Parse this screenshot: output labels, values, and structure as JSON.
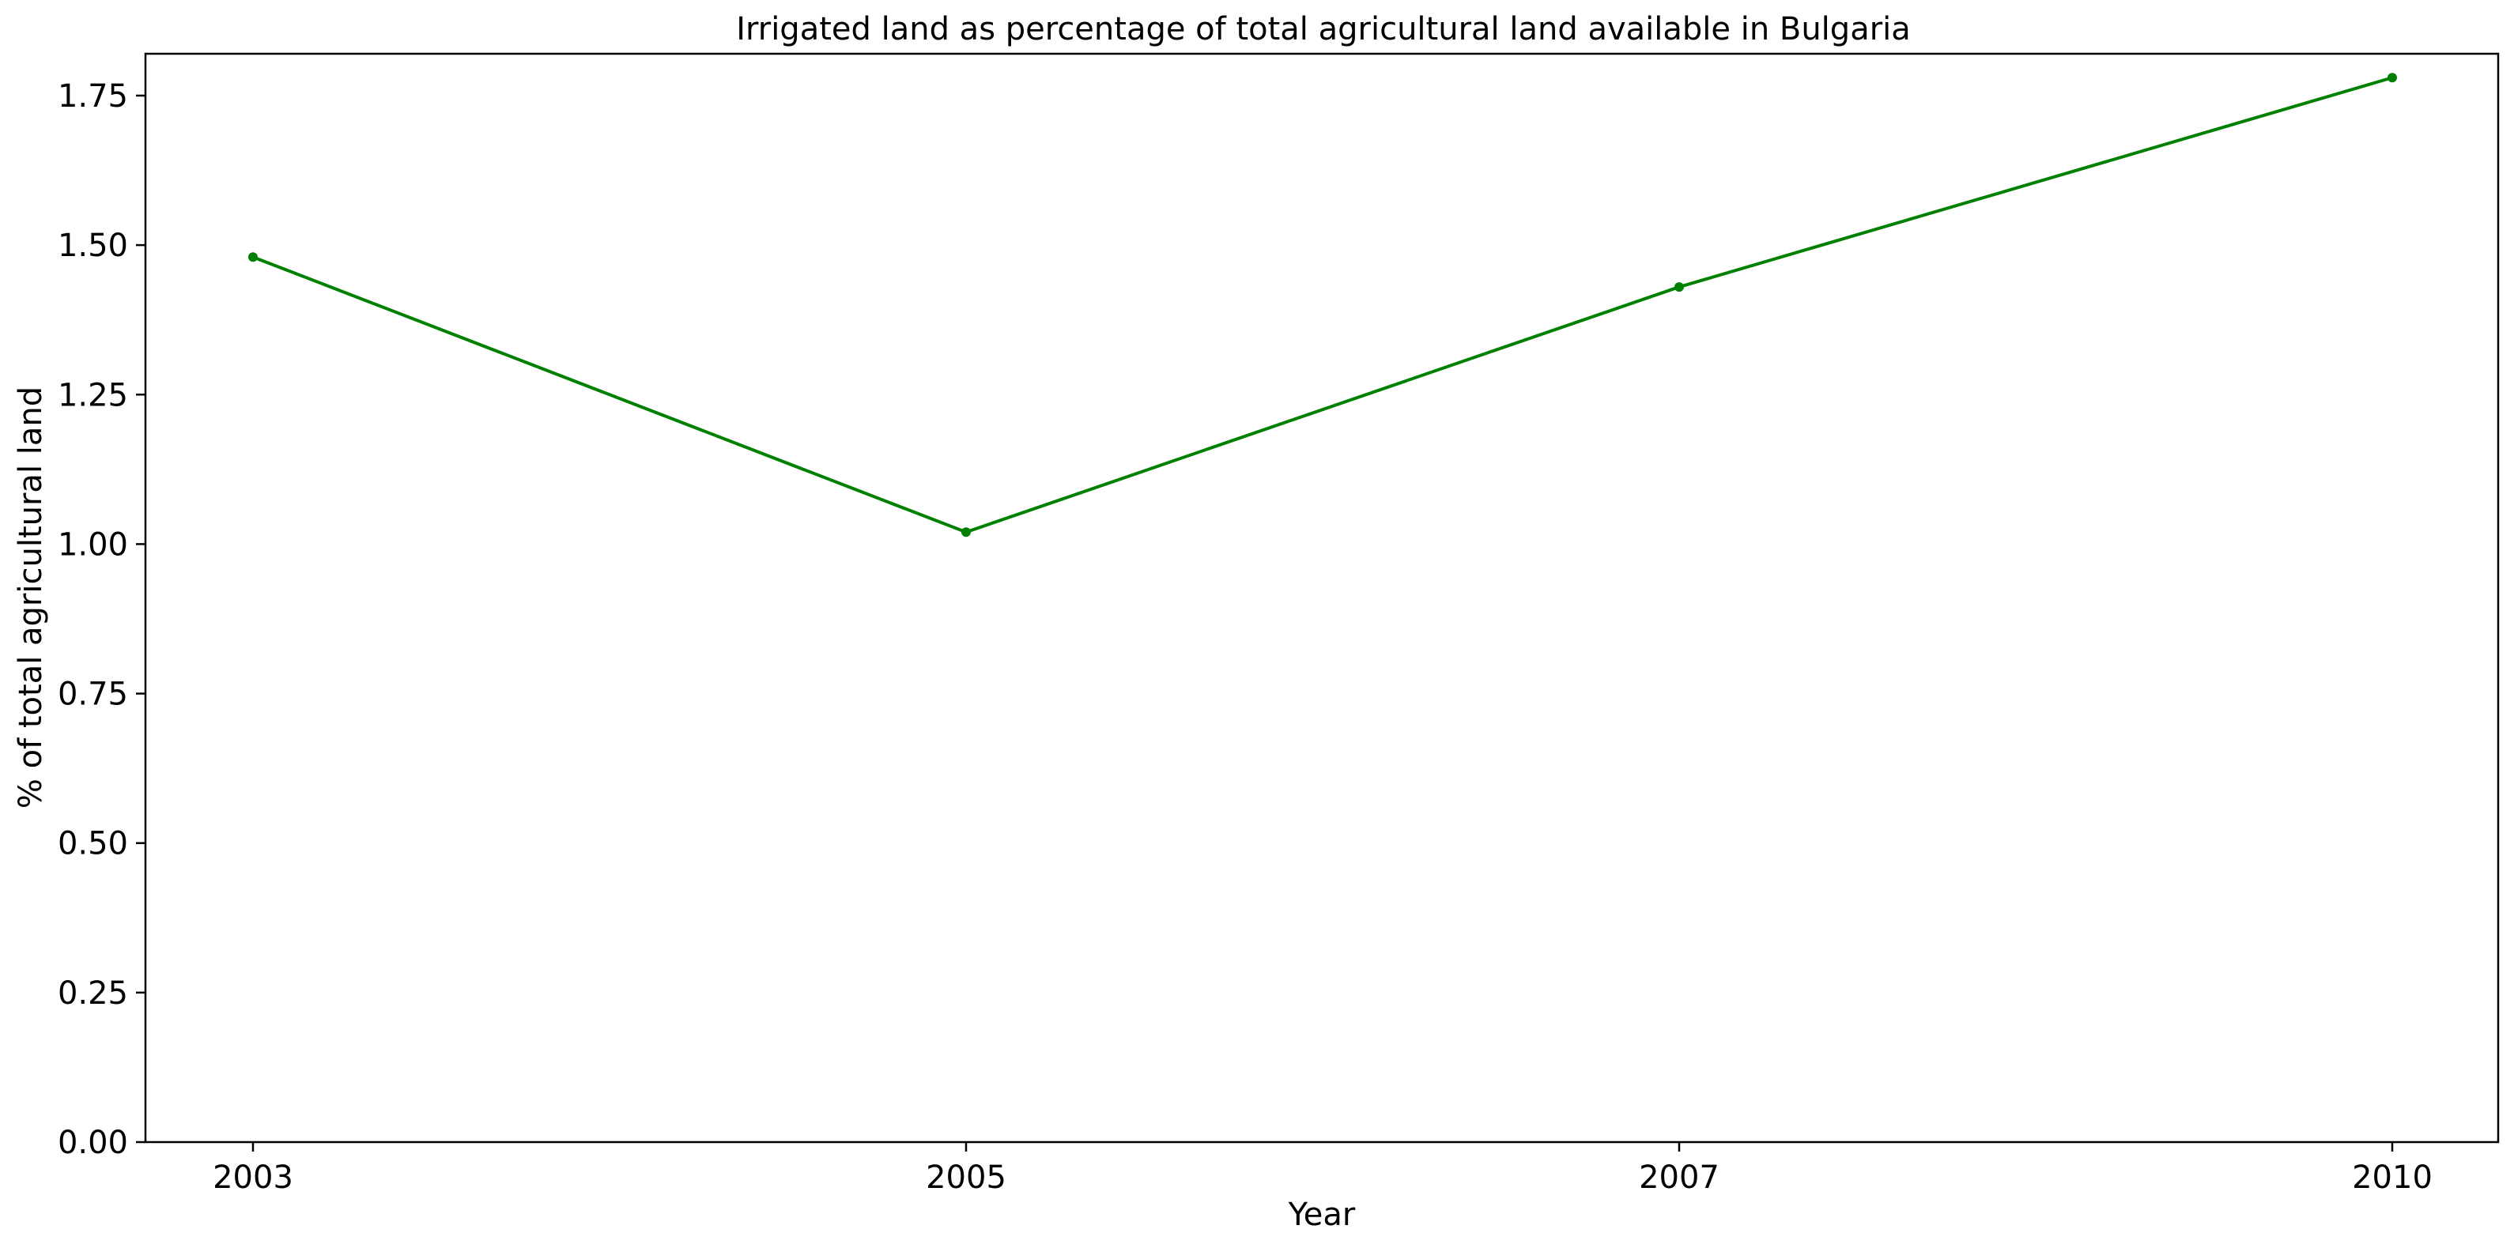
{
  "chart_data": {
    "type": "line",
    "title": "Irrigated land as percentage of total agricultural land available in Bulgaria",
    "xlabel": "Year",
    "ylabel": "% of total agricultural land",
    "categories": [
      "2003",
      "2005",
      "2007",
      "2010"
    ],
    "series": [
      {
        "values": [
          1.48,
          1.02,
          1.43,
          1.78
        ],
        "color": "#008000",
        "marker": "circle"
      }
    ],
    "ylim": [
      0,
      1.82
    ],
    "yticks": [
      "0.00",
      "0.25",
      "0.50",
      "0.75",
      "1.00",
      "1.25",
      "1.50",
      "1.75"
    ],
    "ytick_values": [
      0,
      0.25,
      0.5,
      0.75,
      1.0,
      1.25,
      1.5,
      1.75
    ],
    "grid": false,
    "legend": "none"
  }
}
